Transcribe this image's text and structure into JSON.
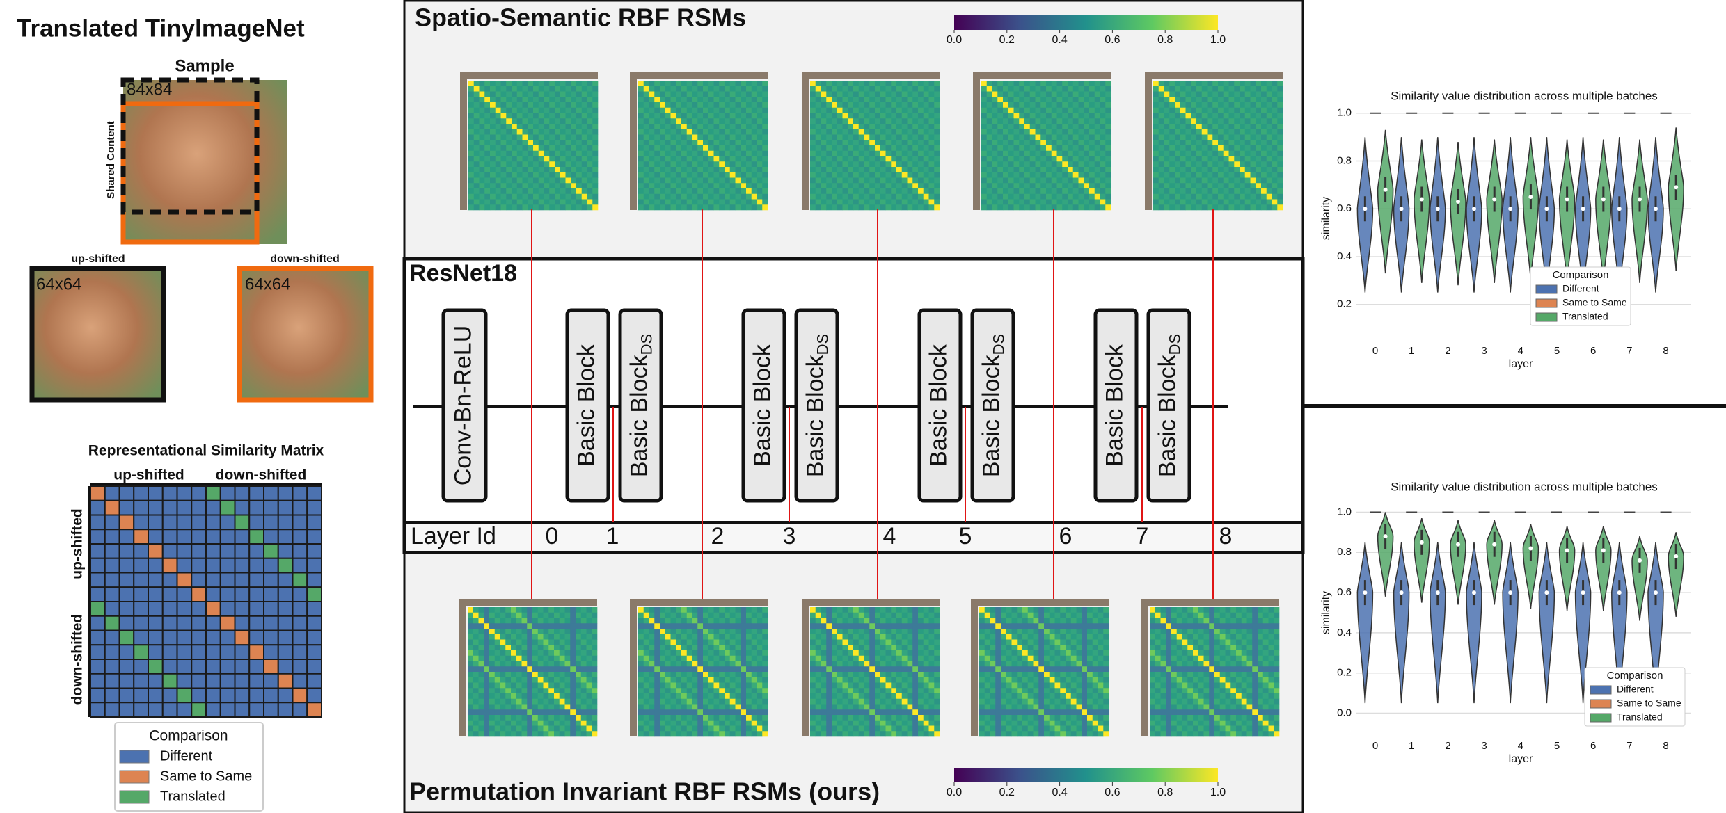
{
  "left": {
    "title": "Translated TinyImageNet",
    "sample_label": "Sample",
    "large_size": "84x84",
    "shared_label": "Shared Content",
    "up_label": "up-shifted",
    "down_label": "down-shifted",
    "small_size": "64x64",
    "rsm_title": "Representational Similarity Matrix",
    "rsm_top": [
      "up-shifted",
      "down-shifted"
    ],
    "rsm_side": [
      "up-shifted",
      "down-shifted"
    ],
    "legend": {
      "title": "Comparison",
      "entries": [
        {
          "name": "Different",
          "color": "#4c72b0"
        },
        {
          "name": "Same to Same",
          "color": "#dd8452"
        },
        {
          "name": "Translated",
          "color": "#55a868"
        }
      ]
    }
  },
  "center": {
    "top_title": "Spatio-Semantic RBF RSMs",
    "bottom_title": "Permutation Invariant RBF RSMs (ours)",
    "network": "ResNet18",
    "conv_block": "Conv-Bn-ReLU",
    "basic_block": "Basic Block",
    "ds": "DS",
    "layer_id_label": "Layer Id",
    "layer_ids": [
      0,
      1,
      2,
      3,
      4,
      5,
      6,
      7,
      8
    ],
    "colorbar_ticks": [
      {
        "value": 0,
        "label": "0.0"
      },
      0.2,
      0.4,
      0.6,
      0.8,
      {
        "value": 1,
        "label": "1.0"
      }
    ]
  },
  "violins": [
    {
      "type": "violin",
      "title": "Similarity value distribution across multiple batches",
      "xlabel": "layer",
      "ylabel": "similarity",
      "legend_title": "Comparison",
      "categories": [
        "0",
        "1",
        "2",
        "3",
        "4",
        "5",
        "6",
        "7",
        "8"
      ],
      "ylim": [
        0.08,
        1.04
      ],
      "yticks": [
        0.2,
        0.4,
        0.6,
        0.8,
        {
          "value": 1,
          "label": "1.0"
        }
      ],
      "series": [
        {
          "name": "Different",
          "color": "#4c72b0",
          "values": [
            0.6,
            0.6,
            0.6,
            0.6,
            0.6,
            0.6,
            0.6,
            0.6,
            0.6
          ]
        },
        {
          "name": "Same to Same",
          "color": "#dd8452",
          "values": [
            1,
            1,
            1,
            1,
            1,
            1,
            1,
            1,
            1
          ]
        },
        {
          "name": "Translated",
          "color": "#55a868",
          "values": [
            0.68,
            0.64,
            0.63,
            0.64,
            0.65,
            0.64,
            0.64,
            0.64,
            0.69
          ]
        }
      ]
    },
    {
      "type": "violin",
      "title": "Similarity value distribution across multiple batches",
      "xlabel": "layer",
      "ylabel": "similarity",
      "legend_title": "Comparison",
      "categories": [
        "0",
        "1",
        "2",
        "3",
        "4",
        "5",
        "6",
        "7",
        "8"
      ],
      "ylim": [
        -0.05,
        1.05
      ],
      "yticks": [
        {
          "value": 0,
          "label": "0.0"
        },
        0.2,
        0.4,
        0.6,
        0.8,
        {
          "value": 1,
          "label": "1.0"
        }
      ],
      "series": [
        {
          "name": "Different",
          "color": "#4c72b0",
          "values": [
            0.6,
            0.6,
            0.6,
            0.6,
            0.6,
            0.6,
            0.6,
            0.6,
            0.6
          ]
        },
        {
          "name": "Same to Same",
          "color": "#dd8452",
          "values": [
            1,
            1,
            1,
            1,
            1,
            1,
            1,
            1,
            1
          ]
        },
        {
          "name": "Translated",
          "color": "#55a868",
          "values": [
            0.88,
            0.85,
            0.84,
            0.84,
            0.82,
            0.81,
            0.81,
            0.76,
            0.78
          ]
        }
      ]
    }
  ]
}
